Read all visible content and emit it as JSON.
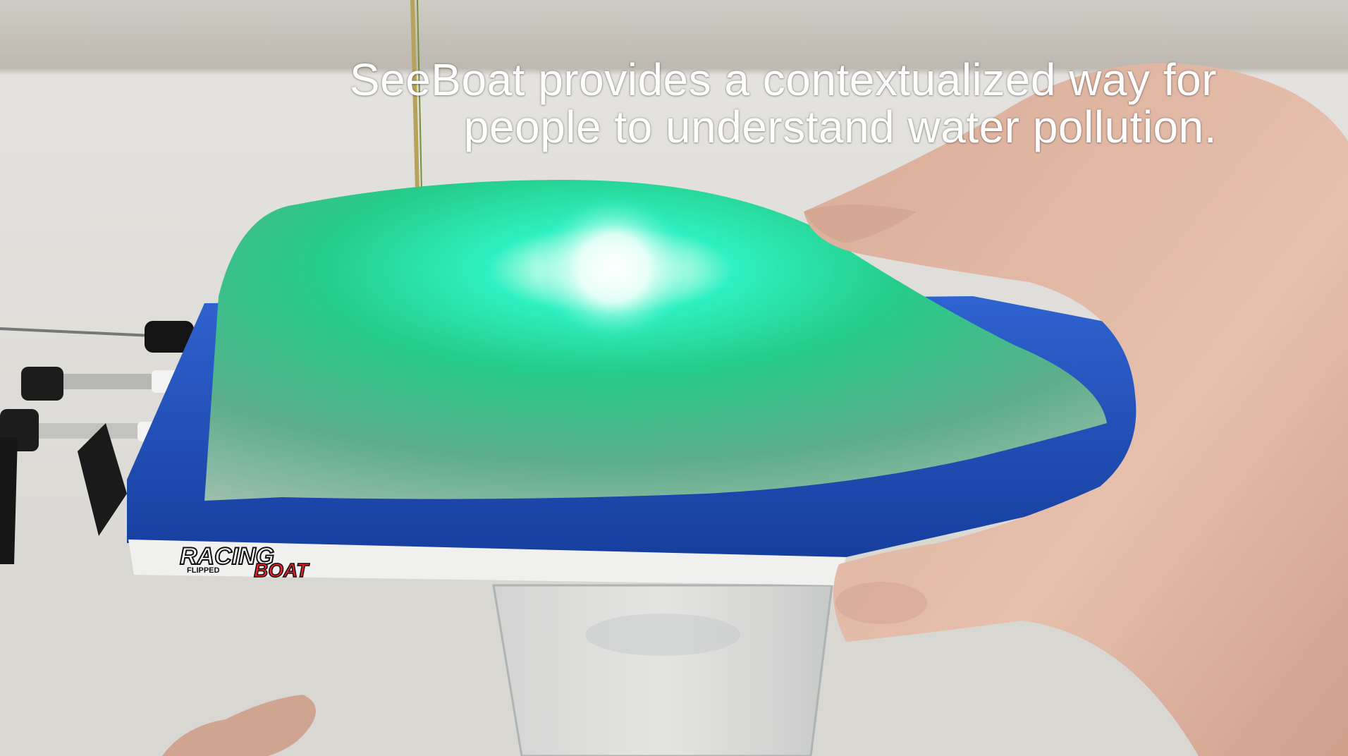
{
  "caption": {
    "line1": "SeeBoat provides a contextualized way for",
    "line2": "people to understand water pollution."
  },
  "boat": {
    "brand_top": "RACING",
    "brand_small": "FLIPPED",
    "brand_bottom": "BOAT"
  },
  "colors": {
    "wall": "#dcdad5",
    "hull": "#1f4fb8",
    "glow": "#2be59a",
    "skin": "#e2b9a4"
  }
}
